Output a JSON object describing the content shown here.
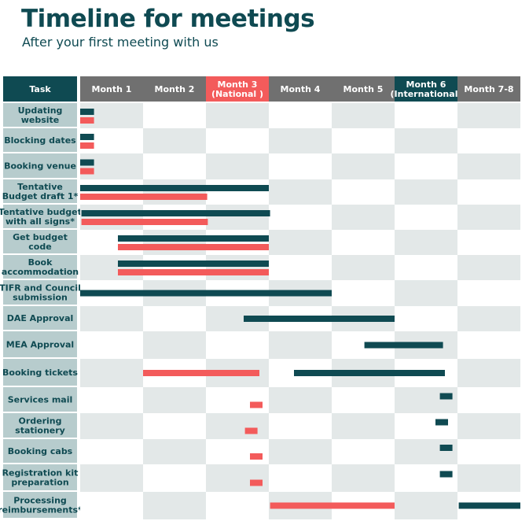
{
  "title": "Timeline for meetings",
  "subtitle": "After your first meeting with us",
  "colors": {
    "teal": "#0f4a52",
    "red": "#f35b5b",
    "header_gray": "#707070",
    "task_cell": "#b7cccd",
    "light_cell": "#e3e8e8",
    "white": "#ffffff"
  },
  "chart_data": {
    "type": "gantt",
    "task_header": "Task",
    "columns": [
      {
        "label": [
          "Month 1"
        ],
        "style": "gray"
      },
      {
        "label": [
          "Month 2"
        ],
        "style": "gray"
      },
      {
        "label": [
          "Month 3",
          "(National )"
        ],
        "style": "red"
      },
      {
        "label": [
          "Month 4"
        ],
        "style": "gray"
      },
      {
        "label": [
          "Month 5"
        ],
        "style": "gray"
      },
      {
        "label": [
          "Month 6",
          "(International)"
        ],
        "style": "teal"
      },
      {
        "label": [
          "Month 7-8"
        ],
        "style": "gray"
      }
    ],
    "x_unit": "month columns elapsed (0 = start of Month 1, 7 = end of Month 7-8)",
    "tasks": [
      {
        "label": [
          "Updating",
          "website"
        ],
        "bars": [
          {
            "color": "teal",
            "start": 0.0,
            "end": 0.22
          },
          {
            "color": "red",
            "start": 0.0,
            "end": 0.22
          }
        ]
      },
      {
        "label": [
          "Blocking dates"
        ],
        "bars": [
          {
            "color": "teal",
            "start": 0.0,
            "end": 0.22
          },
          {
            "color": "red",
            "start": 0.0,
            "end": 0.22
          }
        ]
      },
      {
        "label": [
          "Booking venue"
        ],
        "bars": [
          {
            "color": "teal",
            "start": 0.0,
            "end": 0.22
          },
          {
            "color": "red",
            "start": 0.0,
            "end": 0.22
          }
        ]
      },
      {
        "label": [
          "Tentative",
          "Budget draft 1*"
        ],
        "bars": [
          {
            "color": "teal",
            "start": 0.0,
            "end": 3.0
          },
          {
            "color": "red",
            "start": 0.0,
            "end": 2.02
          }
        ]
      },
      {
        "label": [
          "Tentative budget",
          "with all signs*"
        ],
        "bars": [
          {
            "color": "teal",
            "start": 0.02,
            "end": 3.02
          },
          {
            "color": "red",
            "start": 0.02,
            "end": 2.03
          }
        ]
      },
      {
        "label": [
          "Get budget",
          "code"
        ],
        "bars": [
          {
            "color": "teal",
            "start": 0.6,
            "end": 3.0
          },
          {
            "color": "red",
            "start": 0.6,
            "end": 3.0
          }
        ]
      },
      {
        "label": [
          "Book",
          "accommodation"
        ],
        "bars": [
          {
            "color": "teal",
            "start": 0.6,
            "end": 3.0
          },
          {
            "color": "red",
            "start": 0.6,
            "end": 3.0
          }
        ]
      },
      {
        "label": [
          "TIFR and Council",
          "submission"
        ],
        "bars": [
          {
            "color": "teal",
            "start": 0.0,
            "end": 4.0
          }
        ]
      },
      {
        "label": [
          "DAE Approval"
        ],
        "bars": [
          {
            "color": "teal",
            "start": 2.6,
            "end": 5.0
          }
        ]
      },
      {
        "label": [
          "MEA Approval"
        ],
        "bars": [
          {
            "color": "teal",
            "start": 4.52,
            "end": 5.77
          }
        ]
      },
      {
        "label": [
          "Booking tickets"
        ],
        "bars": [
          {
            "color": "red",
            "start": 1.0,
            "end": 2.85
          },
          {
            "color": "teal",
            "start": 3.4,
            "end": 5.8
          }
        ]
      },
      {
        "label": [
          "Services mail"
        ],
        "bars": [
          {
            "color": "teal",
            "start": 5.72,
            "end": 5.92
          },
          {
            "color": "red",
            "start": 2.7,
            "end": 2.9
          }
        ]
      },
      {
        "label": [
          "Ordering",
          "stationery"
        ],
        "bars": [
          {
            "color": "teal",
            "start": 5.65,
            "end": 5.85
          },
          {
            "color": "red",
            "start": 2.62,
            "end": 2.82
          }
        ]
      },
      {
        "label": [
          "Booking cabs"
        ],
        "bars": [
          {
            "color": "teal",
            "start": 5.72,
            "end": 5.92
          },
          {
            "color": "red",
            "start": 2.7,
            "end": 2.9
          }
        ]
      },
      {
        "label": [
          "Registration kit",
          "preparation"
        ],
        "bars": [
          {
            "color": "teal",
            "start": 5.72,
            "end": 5.92
          },
          {
            "color": "red",
            "start": 2.7,
            "end": 2.9
          }
        ]
      },
      {
        "label": [
          "Processing",
          "reimbursements*"
        ],
        "bars": [
          {
            "color": "red",
            "start": 3.02,
            "end": 5.0
          },
          {
            "color": "teal",
            "start": 6.02,
            "end": 7.0
          }
        ]
      }
    ]
  }
}
